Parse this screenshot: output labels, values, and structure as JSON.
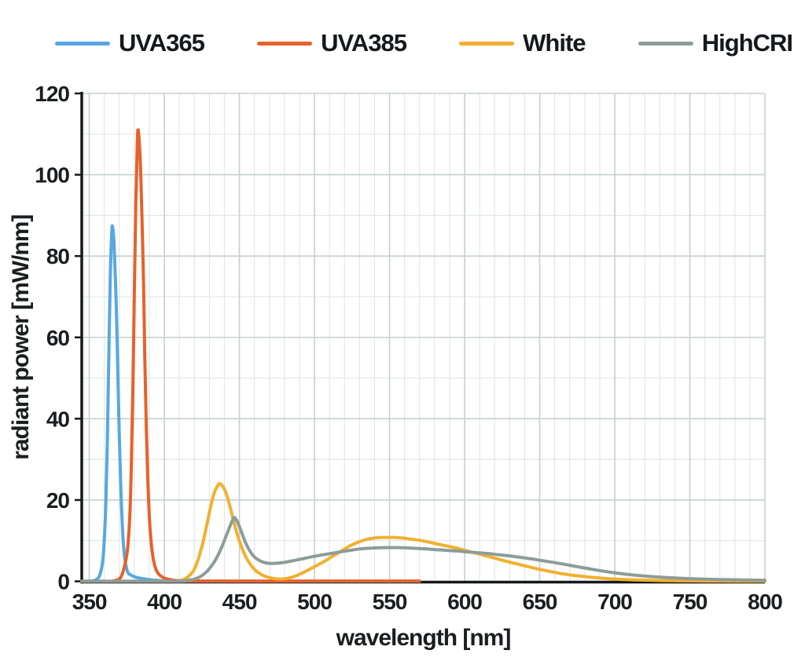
{
  "colors": {
    "background": "#ffffff",
    "text": "#1a1e20",
    "axis_spine": "#16191b",
    "grid_minor": "#e2e8e7",
    "grid_major": "#c6d0cf"
  },
  "chart_data": {
    "type": "line",
    "title": "",
    "xlabel": "wavelength [nm]",
    "ylabel": "radiant power [mW/nm]",
    "xlim": [
      345,
      800
    ],
    "ylim": [
      0,
      120
    ],
    "xticks": [
      350,
      400,
      450,
      500,
      550,
      600,
      650,
      700,
      750,
      800
    ],
    "yticks": [
      0,
      20,
      40,
      60,
      80,
      100,
      120
    ],
    "minor_grid_step_x": 10,
    "minor_grid_step_y": 10,
    "grid": "minor and major gridlines on",
    "legend_position": "top",
    "series": [
      {
        "name": "UVA365",
        "color": "#58a7e3",
        "points": [
          [
            345,
            0
          ],
          [
            352,
            0.1
          ],
          [
            355,
            0.5
          ],
          [
            357,
            1.5
          ],
          [
            359,
            5
          ],
          [
            360,
            10
          ],
          [
            361,
            19
          ],
          [
            362,
            34
          ],
          [
            363,
            55
          ],
          [
            364,
            75
          ],
          [
            365,
            86
          ],
          [
            365.6,
            87
          ],
          [
            366.5,
            83
          ],
          [
            368,
            68
          ],
          [
            369,
            52
          ],
          [
            370,
            36
          ],
          [
            371,
            23
          ],
          [
            372,
            14
          ],
          [
            373,
            8
          ],
          [
            374,
            4.8
          ],
          [
            375,
            3
          ],
          [
            376,
            2
          ],
          [
            378,
            1.5
          ],
          [
            381,
            1.0
          ],
          [
            385,
            0.7
          ],
          [
            390,
            0.45
          ],
          [
            395,
            0.25
          ],
          [
            400,
            0.12
          ],
          [
            405,
            0.07
          ],
          [
            420,
            0.05
          ],
          [
            570,
            0.04
          ]
        ]
      },
      {
        "name": "UVA385",
        "color": "#e7612b",
        "points": [
          [
            345,
            0
          ],
          [
            362,
            0
          ],
          [
            366,
            0.1
          ],
          [
            369,
            0.4
          ],
          [
            371,
            1
          ],
          [
            373,
            3
          ],
          [
            375,
            6.5
          ],
          [
            376,
            10
          ],
          [
            377,
            16
          ],
          [
            378,
            28
          ],
          [
            379,
            46
          ],
          [
            380,
            70
          ],
          [
            381,
            93
          ],
          [
            382,
            108
          ],
          [
            382.6,
            111
          ],
          [
            383.5,
            107
          ],
          [
            384.5,
            98
          ],
          [
            386,
            76
          ],
          [
            387,
            55
          ],
          [
            388,
            38
          ],
          [
            389,
            25
          ],
          [
            390,
            16
          ],
          [
            391,
            10.5
          ],
          [
            392,
            7
          ],
          [
            393,
            4.8
          ],
          [
            394,
            3.4
          ],
          [
            395,
            2.5
          ],
          [
            397,
            1.5
          ],
          [
            400,
            0.8
          ],
          [
            404,
            0.4
          ],
          [
            408,
            0.2
          ],
          [
            413,
            0.1
          ],
          [
            420,
            0.06
          ],
          [
            570,
            0.05
          ]
        ]
      },
      {
        "name": "White",
        "color": "#f1b02e",
        "points": [
          [
            345,
            0.02
          ],
          [
            405,
            0.02
          ],
          [
            409,
            0.1
          ],
          [
            412,
            0.35
          ],
          [
            415,
            0.9
          ],
          [
            418,
            1.9
          ],
          [
            420,
            3
          ],
          [
            422,
            4.8
          ],
          [
            424,
            7.2
          ],
          [
            426,
            10
          ],
          [
            428,
            13.4
          ],
          [
            430,
            16.9
          ],
          [
            432,
            20.2
          ],
          [
            434,
            22.5
          ],
          [
            436,
            23.8
          ],
          [
            437,
            24
          ],
          [
            438.5,
            23.6
          ],
          [
            440,
            22.7
          ],
          [
            442,
            20.7
          ],
          [
            444,
            18
          ],
          [
            446,
            15.1
          ],
          [
            448,
            12.3
          ],
          [
            450,
            9.9
          ],
          [
            452,
            7.9
          ],
          [
            454,
            6.2
          ],
          [
            456,
            4.9
          ],
          [
            458,
            3.8
          ],
          [
            461,
            2.6
          ],
          [
            464,
            1.8
          ],
          [
            467,
            1.25
          ],
          [
            470,
            0.9
          ],
          [
            473,
            0.68
          ],
          [
            476,
            0.58
          ],
          [
            479,
            0.58
          ],
          [
            482,
            0.72
          ],
          [
            485,
            1.0
          ],
          [
            488,
            1.4
          ],
          [
            491,
            1.9
          ],
          [
            495,
            2.6
          ],
          [
            499,
            3.4
          ],
          [
            503,
            4.2
          ],
          [
            507,
            5.0
          ],
          [
            511,
            5.9
          ],
          [
            515,
            6.8
          ],
          [
            519,
            7.7
          ],
          [
            523,
            8.6
          ],
          [
            527,
            9.3
          ],
          [
            531,
            9.9
          ],
          [
            535,
            10.35
          ],
          [
            539,
            10.6
          ],
          [
            543,
            10.75
          ],
          [
            548,
            10.8
          ],
          [
            553,
            10.8
          ],
          [
            558,
            10.65
          ],
          [
            563,
            10.45
          ],
          [
            568,
            10.2
          ],
          [
            573,
            9.9
          ],
          [
            578,
            9.5
          ],
          [
            583,
            9.1
          ],
          [
            588,
            8.7
          ],
          [
            593,
            8.3
          ],
          [
            598,
            7.85
          ],
          [
            603,
            7.35
          ],
          [
            608,
            6.9
          ],
          [
            613,
            6.4
          ],
          [
            618,
            5.9
          ],
          [
            623,
            5.4
          ],
          [
            628,
            4.9
          ],
          [
            633,
            4.45
          ],
          [
            638,
            4.0
          ],
          [
            643,
            3.55
          ],
          [
            648,
            3.1
          ],
          [
            653,
            2.7
          ],
          [
            658,
            2.35
          ],
          [
            663,
            2.0
          ],
          [
            668,
            1.7
          ],
          [
            673,
            1.45
          ],
          [
            678,
            1.25
          ],
          [
            683,
            1.05
          ],
          [
            688,
            0.88
          ],
          [
            693,
            0.72
          ],
          [
            698,
            0.6
          ],
          [
            705,
            0.47
          ],
          [
            712,
            0.37
          ],
          [
            720,
            0.28
          ],
          [
            730,
            0.2
          ],
          [
            740,
            0.15
          ],
          [
            750,
            0.11
          ],
          [
            762,
            0.08
          ],
          [
            775,
            0.05
          ],
          [
            788,
            0.04
          ],
          [
            800,
            0.03
          ]
        ]
      },
      {
        "name": "HighCRI",
        "color": "#8c9c99",
        "points": [
          [
            345,
            0.02
          ],
          [
            408,
            0.02
          ],
          [
            412,
            0.08
          ],
          [
            416,
            0.25
          ],
          [
            420,
            0.55
          ],
          [
            424,
            1.15
          ],
          [
            428,
            2.3
          ],
          [
            432,
            4.1
          ],
          [
            435,
            5.9
          ],
          [
            438,
            8.2
          ],
          [
            441,
            11
          ],
          [
            443,
            12.9
          ],
          [
            445,
            14.7
          ],
          [
            446.5,
            15.7
          ],
          [
            448,
            15.1
          ],
          [
            450,
            13.5
          ],
          [
            452,
            11.5
          ],
          [
            454,
            9.6
          ],
          [
            456,
            8.1
          ],
          [
            458,
            6.9
          ],
          [
            460,
            6.0
          ],
          [
            463,
            5.2
          ],
          [
            466,
            4.7
          ],
          [
            469,
            4.45
          ],
          [
            472,
            4.4
          ],
          [
            476,
            4.5
          ],
          [
            480,
            4.68
          ],
          [
            484,
            4.95
          ],
          [
            488,
            5.25
          ],
          [
            492,
            5.55
          ],
          [
            496,
            5.85
          ],
          [
            500,
            6.15
          ],
          [
            505,
            6.5
          ],
          [
            510,
            6.8
          ],
          [
            515,
            7.1
          ],
          [
            520,
            7.4
          ],
          [
            525,
            7.7
          ],
          [
            530,
            7.95
          ],
          [
            535,
            8.1
          ],
          [
            540,
            8.2
          ],
          [
            545,
            8.28
          ],
          [
            550,
            8.3
          ],
          [
            555,
            8.3
          ],
          [
            560,
            8.25
          ],
          [
            565,
            8.15
          ],
          [
            570,
            8.05
          ],
          [
            575,
            7.95
          ],
          [
            580,
            7.8
          ],
          [
            585,
            7.7
          ],
          [
            590,
            7.55
          ],
          [
            595,
            7.45
          ],
          [
            600,
            7.3
          ],
          [
            605,
            7.15
          ],
          [
            610,
            7.0
          ],
          [
            615,
            6.85
          ],
          [
            620,
            6.65
          ],
          [
            625,
            6.45
          ],
          [
            630,
            6.25
          ],
          [
            635,
            6.0
          ],
          [
            640,
            5.75
          ],
          [
            645,
            5.5
          ],
          [
            650,
            5.2
          ],
          [
            655,
            4.9
          ],
          [
            660,
            4.6
          ],
          [
            665,
            4.28
          ],
          [
            670,
            3.95
          ],
          [
            675,
            3.6
          ],
          [
            680,
            3.28
          ],
          [
            685,
            2.95
          ],
          [
            690,
            2.65
          ],
          [
            695,
            2.36
          ],
          [
            700,
            2.1
          ],
          [
            705,
            1.86
          ],
          [
            710,
            1.65
          ],
          [
            715,
            1.46
          ],
          [
            720,
            1.3
          ],
          [
            726,
            1.13
          ],
          [
            732,
            0.98
          ],
          [
            738,
            0.86
          ],
          [
            745,
            0.74
          ],
          [
            752,
            0.64
          ],
          [
            760,
            0.55
          ],
          [
            770,
            0.45
          ],
          [
            780,
            0.38
          ],
          [
            790,
            0.31
          ],
          [
            800,
            0.26
          ]
        ]
      }
    ]
  }
}
